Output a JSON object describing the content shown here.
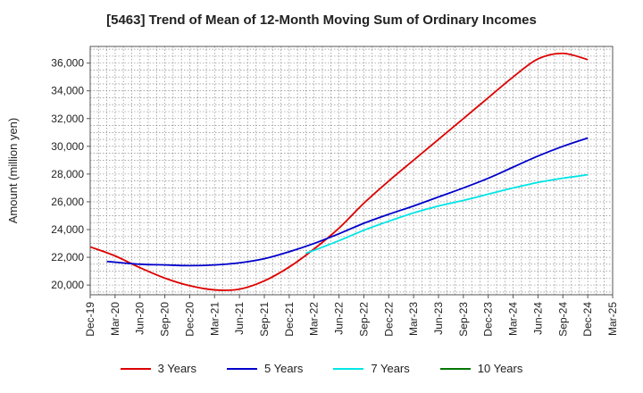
{
  "chart_data": {
    "type": "line",
    "title": "[5463]  Trend of Mean of 12-Month Moving Sum of Ordinary Incomes",
    "xlabel": "",
    "ylabel": "Amount (million yen)",
    "x_ticks": [
      "Dec-19",
      "Mar-20",
      "Jun-20",
      "Sep-20",
      "Dec-20",
      "Mar-21",
      "Jun-21",
      "Sep-21",
      "Dec-21",
      "Mar-22",
      "Jun-22",
      "Sep-22",
      "Dec-22",
      "Mar-23",
      "Jun-23",
      "Sep-23",
      "Dec-23",
      "Mar-24",
      "Jun-24",
      "Sep-24",
      "Dec-24",
      "Mar-25"
    ],
    "ylim": [
      19300,
      37200
    ],
    "y_ticks": [
      20000,
      22000,
      24000,
      26000,
      28000,
      30000,
      32000,
      34000,
      36000
    ],
    "y_tick_labels": [
      "20,000",
      "22,000",
      "24,000",
      "26,000",
      "28,000",
      "30,000",
      "32,000",
      "34,000",
      "36,000"
    ],
    "grid": true,
    "legend_position": "bottom",
    "series": [
      {
        "name": "3 Years",
        "color": "#dd0000",
        "points": [
          [
            0,
            22750
          ],
          [
            1,
            22100
          ],
          [
            2,
            21250
          ],
          [
            3,
            20500
          ],
          [
            4,
            19950
          ],
          [
            5,
            19650
          ],
          [
            6,
            19700
          ],
          [
            7,
            20300
          ],
          [
            8,
            21300
          ],
          [
            9,
            22600
          ],
          [
            10,
            24100
          ],
          [
            11,
            25900
          ],
          [
            12,
            27500
          ],
          [
            13,
            29000
          ],
          [
            14,
            30500
          ],
          [
            15,
            32000
          ],
          [
            16,
            33500
          ],
          [
            17,
            35000
          ],
          [
            18,
            36300
          ],
          [
            19,
            36700
          ],
          [
            20,
            36250
          ]
        ]
      },
      {
        "name": "5 Years",
        "color": "#0000cc",
        "points": [
          [
            0.667,
            21700
          ],
          [
            1,
            21650
          ],
          [
            2,
            21500
          ],
          [
            3,
            21450
          ],
          [
            4,
            21400
          ],
          [
            5,
            21450
          ],
          [
            6,
            21600
          ],
          [
            7,
            21900
          ],
          [
            8,
            22400
          ],
          [
            9,
            23000
          ],
          [
            10,
            23700
          ],
          [
            11,
            24450
          ],
          [
            12,
            25100
          ],
          [
            13,
            25700
          ],
          [
            14,
            26350
          ],
          [
            15,
            27000
          ],
          [
            16,
            27700
          ],
          [
            17,
            28500
          ],
          [
            18,
            29300
          ],
          [
            19,
            30000
          ],
          [
            20,
            30600
          ]
        ]
      },
      {
        "name": "7 Years",
        "color": "#00e5e5",
        "points": [
          [
            8.667,
            22300
          ],
          [
            9,
            22500
          ],
          [
            10,
            23200
          ],
          [
            11,
            23950
          ],
          [
            12,
            24600
          ],
          [
            13,
            25200
          ],
          [
            14,
            25700
          ],
          [
            15,
            26100
          ],
          [
            16,
            26550
          ],
          [
            17,
            27000
          ],
          [
            18,
            27400
          ],
          [
            19,
            27700
          ],
          [
            20,
            27950
          ]
        ]
      },
      {
        "name": "10 Years",
        "color": "#007700",
        "points": []
      }
    ]
  }
}
